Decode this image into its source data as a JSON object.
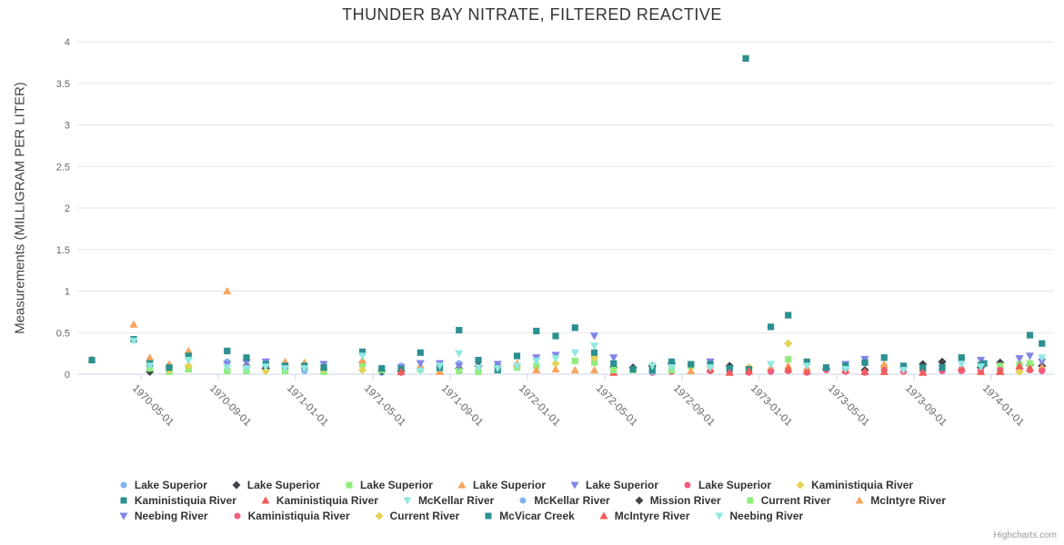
{
  "chart_data": {
    "type": "scatter",
    "title": "THUNDER BAY NITRATE, FILTERED REACTIVE",
    "xlabel": "",
    "ylabel": "Measurements (MILLIGRAM PER LITER)",
    "ylim": [
      0,
      4
    ],
    "yticks": [
      0,
      0.5,
      1,
      1.5,
      2,
      2.5,
      3,
      3.5,
      4
    ],
    "xticks": [
      "1970-05-01",
      "1970-09-01",
      "1971-01-01",
      "1971-05-01",
      "1971-09-01",
      "1972-01-01",
      "1972-05-01",
      "1972-09-01",
      "1973-01-01",
      "1973-05-01",
      "1973-09-01",
      "1974-01-01"
    ],
    "grid": "horizontal",
    "legend": {
      "position": "bottom",
      "rows": [
        7,
        7,
        6
      ]
    },
    "credit": "Highcharts.com",
    "series": [
      {
        "name": "Lake Superior",
        "marker": "circle",
        "color": "#7cb5ec",
        "data": [
          [
            "1970-05-15",
            0.05
          ],
          [
            "1970-06-15",
            0.1
          ],
          [
            "1970-09-15",
            0.15
          ],
          [
            "1971-01-15",
            0.04
          ],
          [
            "1971-05-15",
            0.02
          ],
          [
            "1971-06-15",
            0.1
          ],
          [
            "1971-09-15",
            0.13
          ],
          [
            "1971-10-15",
            0.05
          ]
        ]
      },
      {
        "name": "Lake Superior",
        "marker": "diamond",
        "color": "#434348",
        "data": [
          [
            "1970-05-15",
            0.03
          ],
          [
            "1970-10-15",
            0.1
          ],
          [
            "1970-11-15",
            0.07
          ],
          [
            "1971-05-15",
            0.04
          ],
          [
            "1971-06-15",
            0.04
          ],
          [
            "1971-09-15",
            0.07
          ],
          [
            "1971-10-15",
            0.1
          ],
          [
            "1971-11-15",
            0.1
          ]
        ]
      },
      {
        "name": "Lake Superior",
        "marker": "square",
        "color": "#90ed7d",
        "data": [
          [
            "1970-05-15",
            0.07
          ],
          [
            "1970-06-15",
            0.03
          ],
          [
            "1970-07-15",
            0.06
          ],
          [
            "1970-09-15",
            0.04
          ],
          [
            "1970-10-15",
            0.04
          ],
          [
            "1970-12-15",
            0.04
          ],
          [
            "1971-02-15",
            0.03
          ],
          [
            "1971-04-15",
            0.12
          ],
          [
            "1971-05-15",
            0.05
          ],
          [
            "1971-07-15",
            0.06
          ],
          [
            "1971-08-15",
            0.05
          ],
          [
            "1971-09-15",
            0.04
          ],
          [
            "1971-10-15",
            0.03
          ],
          [
            "1971-12-15",
            0.08
          ]
        ]
      },
      {
        "name": "Lake Superior",
        "marker": "triangle",
        "color": "#f7a35c",
        "data": [
          [
            "1970-02-15",
            0.18
          ],
          [
            "1970-04-20",
            0.6
          ],
          [
            "1970-05-15",
            0.2
          ],
          [
            "1970-06-15",
            0.12
          ],
          [
            "1970-07-15",
            0.28
          ],
          [
            "1970-09-15",
            1.0
          ],
          [
            "1970-12-15",
            0.15
          ],
          [
            "1971-01-15",
            0.14
          ],
          [
            "1971-04-15",
            0.17
          ],
          [
            "1971-07-15",
            0.1
          ],
          [
            "1971-08-15",
            0.03
          ],
          [
            "1971-12-15",
            0.13
          ]
        ]
      },
      {
        "name": "Lake Superior",
        "marker": "triangle-down",
        "color": "#8085e9",
        "data": [
          [
            "1970-09-15",
            0.12
          ],
          [
            "1970-10-15",
            0.14
          ],
          [
            "1970-11-15",
            0.15
          ],
          [
            "1971-02-15",
            0.12
          ],
          [
            "1971-06-15",
            0.08
          ],
          [
            "1971-07-15",
            0.13
          ],
          [
            "1971-08-15",
            0.13
          ],
          [
            "1971-09-15",
            0.1
          ],
          [
            "1971-11-15",
            0.12
          ]
        ]
      },
      {
        "name": "Lake Superior",
        "marker": "circle",
        "color": "#f15c80",
        "data": [
          [
            "1971-06-15",
            0.02
          ],
          [
            "1972-05-15",
            0.03
          ],
          [
            "1972-07-15",
            0.02
          ],
          [
            "1972-08-15",
            0.03
          ],
          [
            "1972-10-15",
            0.04
          ],
          [
            "1972-11-15",
            0.03
          ],
          [
            "1972-12-15",
            0.02
          ]
        ]
      },
      {
        "name": "Kaministiquia River",
        "marker": "diamond",
        "color": "#e4d354",
        "data": [
          [
            "1970-06-15",
            0.05
          ],
          [
            "1970-07-15",
            0.1
          ],
          [
            "1970-11-15",
            0.04
          ],
          [
            "1971-02-15",
            0.06
          ],
          [
            "1971-04-15",
            0.05
          ]
        ]
      },
      {
        "name": "Kaministiquia River",
        "marker": "square",
        "color": "#2b908f",
        "data": [
          [
            "1970-02-15",
            0.17
          ],
          [
            "1970-04-20",
            0.42
          ],
          [
            "1970-05-15",
            0.13
          ],
          [
            "1970-06-15",
            0.08
          ],
          [
            "1970-07-15",
            0.22
          ],
          [
            "1970-09-15",
            0.28
          ],
          [
            "1970-10-15",
            0.2
          ],
          [
            "1970-11-15",
            0.12
          ],
          [
            "1970-12-15",
            0.1
          ],
          [
            "1971-01-15",
            0.1
          ],
          [
            "1971-02-15",
            0.08
          ],
          [
            "1971-04-15",
            0.27
          ],
          [
            "1971-05-15",
            0.07
          ],
          [
            "1971-06-15",
            0.06
          ],
          [
            "1971-07-15",
            0.26
          ],
          [
            "1971-08-15",
            0.08
          ],
          [
            "1971-09-15",
            0.53
          ],
          [
            "1971-10-15",
            0.17
          ],
          [
            "1971-11-15",
            0.05
          ],
          [
            "1971-12-15",
            0.22
          ]
        ]
      },
      {
        "name": "Kaministiquia River",
        "marker": "triangle",
        "color": "#f45b5b",
        "data": [
          [
            "1971-06-15",
            0.03
          ],
          [
            "1972-05-15",
            0.02
          ]
        ]
      },
      {
        "name": "McKellar River",
        "marker": "triangle-down",
        "color": "#91e8e1",
        "data": [
          [
            "1970-04-20",
            0.4
          ],
          [
            "1970-05-15",
            0.1
          ],
          [
            "1970-07-15",
            0.17
          ],
          [
            "1970-09-15",
            0.08
          ],
          [
            "1970-10-15",
            0.07
          ],
          [
            "1970-11-15",
            0.09
          ],
          [
            "1970-12-15",
            0.07
          ],
          [
            "1971-01-15",
            0.07
          ],
          [
            "1971-04-15",
            0.22
          ],
          [
            "1971-07-15",
            0.04
          ],
          [
            "1971-08-15",
            0.1
          ],
          [
            "1971-09-15",
            0.25
          ],
          [
            "1971-10-15",
            0.08
          ],
          [
            "1971-11-15",
            0.07
          ],
          [
            "1971-12-15",
            0.1
          ]
        ]
      },
      {
        "name": "McKellar River",
        "marker": "circle",
        "color": "#7cb5ec",
        "data": [
          [
            "1972-07-15",
            0.03
          ],
          [
            "1973-10-15",
            0.12
          ],
          [
            "1973-11-15",
            0.06
          ],
          [
            "1974-01-15",
            0.07
          ]
        ]
      },
      {
        "name": "Mission River",
        "marker": "diamond",
        "color": "#434348",
        "data": [
          [
            "1972-05-15",
            0.08
          ],
          [
            "1972-06-15",
            0.08
          ],
          [
            "1972-07-15",
            0.1
          ],
          [
            "1972-08-15",
            0.13
          ],
          [
            "1972-11-15",
            0.1
          ],
          [
            "1973-04-15",
            0.06
          ],
          [
            "1973-06-15",
            0.05
          ],
          [
            "1973-08-15",
            0.08
          ],
          [
            "1973-09-15",
            0.12
          ],
          [
            "1973-10-15",
            0.15
          ],
          [
            "1973-12-15",
            0.08
          ],
          [
            "1974-01-15",
            0.14
          ],
          [
            "1974-03-01",
            0.11
          ],
          [
            "1974-03-20",
            0.1
          ]
        ]
      },
      {
        "name": "Current River",
        "marker": "square",
        "color": "#90ed7d",
        "data": [
          [
            "1972-01-15",
            0.1
          ],
          [
            "1972-03-15",
            0.16
          ],
          [
            "1972-04-15",
            0.14
          ],
          [
            "1972-05-15",
            0.05
          ],
          [
            "1972-06-15",
            0.05
          ],
          [
            "1972-08-15",
            0.05
          ],
          [
            "1972-09-15",
            0.1
          ],
          [
            "1973-02-16",
            0.18
          ],
          [
            "1973-07-15",
            0.08
          ],
          [
            "1973-09-15",
            0.06
          ],
          [
            "1974-01-15",
            0.1
          ],
          [
            "1974-02-15",
            0.12
          ],
          [
            "1974-03-01",
            0.13
          ]
        ]
      },
      {
        "name": "McIntyre River",
        "marker": "triangle",
        "color": "#f7a35c",
        "data": [
          [
            "1972-01-15",
            0.05
          ],
          [
            "1972-02-15",
            0.06
          ],
          [
            "1972-03-15",
            0.05
          ],
          [
            "1972-04-15",
            0.05
          ],
          [
            "1972-09-15",
            0.04
          ],
          [
            "1973-01-19",
            0.08
          ],
          [
            "1973-02-16",
            0.1
          ],
          [
            "1973-03-15",
            0.08
          ],
          [
            "1973-07-15",
            0.12
          ],
          [
            "1974-01-15",
            0.04
          ],
          [
            "1974-03-20",
            0.09
          ]
        ]
      },
      {
        "name": "Neebing River",
        "marker": "triangle-down",
        "color": "#8085e9",
        "data": [
          [
            "1972-01-15",
            0.2
          ],
          [
            "1972-02-15",
            0.23
          ],
          [
            "1972-04-15",
            0.46
          ],
          [
            "1972-05-15",
            0.2
          ],
          [
            "1972-10-15",
            0.15
          ],
          [
            "1973-05-15",
            0.12
          ],
          [
            "1973-06-15",
            0.18
          ],
          [
            "1973-12-15",
            0.17
          ],
          [
            "1974-02-15",
            0.19
          ],
          [
            "1974-03-01",
            0.22
          ],
          [
            "1974-03-20",
            0.15
          ]
        ]
      },
      {
        "name": "Kaministiquia River",
        "marker": "circle",
        "color": "#f15c80",
        "data": [
          [
            "1973-01-19",
            0.03
          ],
          [
            "1973-02-16",
            0.04
          ],
          [
            "1973-03-15",
            0.02
          ],
          [
            "1973-04-15",
            0.05
          ],
          [
            "1973-05-15",
            0.03
          ],
          [
            "1973-06-15",
            0.02
          ],
          [
            "1973-07-15",
            0.05
          ],
          [
            "1973-08-15",
            0.03
          ],
          [
            "1973-09-15",
            0.04
          ],
          [
            "1973-10-15",
            0.04
          ],
          [
            "1973-11-15",
            0.04
          ],
          [
            "1973-12-15",
            0.04
          ],
          [
            "1974-01-15",
            0.05
          ],
          [
            "1974-02-15",
            0.05
          ],
          [
            "1974-03-01",
            0.05
          ],
          [
            "1974-03-20",
            0.04
          ]
        ]
      },
      {
        "name": "Current River",
        "marker": "diamond",
        "color": "#e4d354",
        "data": [
          [
            "1972-02-15",
            0.13
          ],
          [
            "1972-04-15",
            0.2
          ],
          [
            "1972-12-15",
            0.08
          ],
          [
            "1973-02-16",
            0.37
          ],
          [
            "1974-02-15",
            0.03
          ]
        ]
      },
      {
        "name": "McVicar Creek",
        "marker": "square",
        "color": "#2b908f",
        "data": [
          [
            "1972-01-15",
            0.52
          ],
          [
            "1972-02-15",
            0.46
          ],
          [
            "1972-03-15",
            0.56
          ],
          [
            "1972-04-15",
            0.26
          ],
          [
            "1972-05-15",
            0.13
          ],
          [
            "1972-06-15",
            0.06
          ],
          [
            "1972-07-15",
            0.05
          ],
          [
            "1972-08-15",
            0.15
          ],
          [
            "1972-09-15",
            0.12
          ],
          [
            "1972-10-15",
            0.12
          ],
          [
            "1972-11-15",
            0.07
          ],
          [
            "1972-12-10",
            3.8
          ],
          [
            "1972-12-15",
            0.06
          ],
          [
            "1973-01-19",
            0.57
          ],
          [
            "1973-02-16",
            0.71
          ],
          [
            "1973-03-15",
            0.15
          ],
          [
            "1973-04-15",
            0.08
          ],
          [
            "1973-05-15",
            0.1
          ],
          [
            "1973-06-15",
            0.14
          ],
          [
            "1973-07-15",
            0.2
          ],
          [
            "1973-08-15",
            0.1
          ],
          [
            "1973-09-15",
            0.08
          ],
          [
            "1973-10-15",
            0.08
          ],
          [
            "1973-11-15",
            0.2
          ],
          [
            "1973-12-15",
            0.11
          ],
          [
            "1973-12-20",
            0.13
          ],
          [
            "1974-03-01",
            0.47
          ],
          [
            "1974-03-20",
            0.37
          ]
        ]
      },
      {
        "name": "McIntyre River",
        "marker": "triangle",
        "color": "#f45b5b",
        "data": [
          [
            "1972-10-15",
            0.06
          ],
          [
            "1972-11-15",
            0.02
          ],
          [
            "1972-12-15",
            0.04
          ],
          [
            "1973-02-16",
            0.06
          ],
          [
            "1973-03-15",
            0.04
          ],
          [
            "1973-05-15",
            0.05
          ],
          [
            "1973-06-15",
            0.03
          ],
          [
            "1973-07-15",
            0.03
          ],
          [
            "1973-09-15",
            0.02
          ],
          [
            "1973-11-15",
            0.08
          ],
          [
            "1973-12-15",
            0.03
          ],
          [
            "1974-01-15",
            0.03
          ],
          [
            "1974-02-15",
            0.1
          ],
          [
            "1974-03-01",
            0.07
          ]
        ]
      },
      {
        "name": "Neebing River",
        "marker": "triangle-down",
        "color": "#91e8e1",
        "data": [
          [
            "1972-01-15",
            0.16
          ],
          [
            "1972-02-15",
            0.19
          ],
          [
            "1972-03-15",
            0.26
          ],
          [
            "1972-04-15",
            0.34
          ],
          [
            "1972-07-15",
            0.1
          ],
          [
            "1972-08-15",
            0.08
          ],
          [
            "1972-10-15",
            0.08
          ],
          [
            "1973-01-19",
            0.12
          ],
          [
            "1973-03-15",
            0.1
          ],
          [
            "1973-05-15",
            0.06
          ],
          [
            "1973-08-15",
            0.05
          ],
          [
            "1973-11-15",
            0.12
          ],
          [
            "1973-12-15",
            0.09
          ],
          [
            "1974-03-20",
            0.2
          ]
        ]
      }
    ]
  }
}
